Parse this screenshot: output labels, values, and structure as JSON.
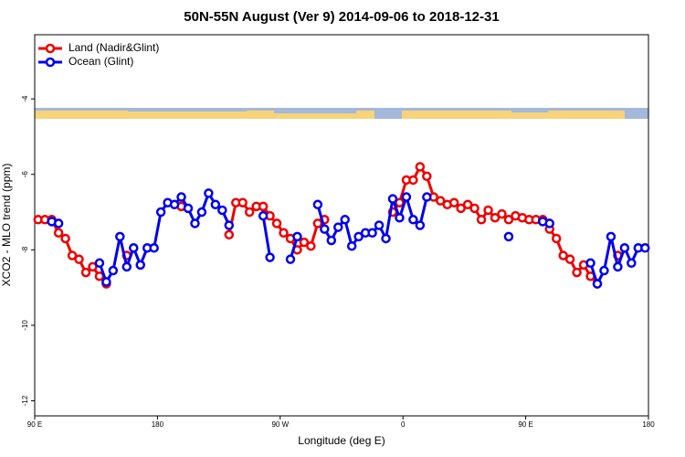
{
  "chart_data": {
    "type": "line",
    "title": "50N-55N August (Ver 9)   2014-09-06 to 2018-12-31",
    "x_label": "Longitude (deg E)",
    "y_label": "XCO2 - MLO trend (ppm)",
    "x": [
      92.5,
      97.5,
      102.5,
      107.5,
      112.5,
      117.5,
      122.5,
      127.5,
      132.5,
      137.5,
      142.5,
      147.5,
      152.5,
      157.5,
      162.5,
      167.5,
      172.5,
      177.5,
      182.5,
      187.5,
      192.5,
      197.5,
      202.5,
      207.5,
      212.5,
      217.5,
      222.5,
      227.5,
      232.5,
      237.5,
      242.5,
      247.5,
      252.5,
      257.5,
      262.5,
      267.5,
      272.5,
      277.5,
      282.5,
      287.5,
      292.5,
      297.5,
      302.5,
      307.5,
      312.5,
      317.5,
      322.5,
      327.5,
      332.5,
      337.5,
      342.5,
      347.5,
      352.5,
      357.5,
      362.5,
      367.5,
      372.5,
      377.5,
      382.5,
      387.5,
      392.5,
      397.5,
      402.5,
      407.5,
      412.5,
      417.5,
      422.5,
      427.5,
      432.5,
      437.5,
      442.5,
      447.5,
      452.5,
      457.5,
      462.5,
      467.5,
      472.5,
      477.5,
      482.5,
      487.5,
      492.5,
      497.5,
      502.5,
      507.5,
      512.5,
      517.5,
      522.5,
      527.5,
      532.5,
      537.5
    ],
    "series": [
      {
        "name": "Land (Nadir&Glint)",
        "color": "#ee0000",
        "values": [
          -7.2,
          -7.2,
          -7.2,
          -7.55,
          -7.7,
          -8.15,
          -8.25,
          -8.6,
          -8.45,
          -8.7,
          -8.9,
          null,
          null,
          -8.15,
          null,
          null,
          null,
          null,
          null,
          null,
          null,
          -6.85,
          null,
          null,
          null,
          null,
          null,
          null,
          -7.6,
          -6.75,
          -6.75,
          -7.0,
          -6.85,
          -6.85,
          -7.1,
          -7.3,
          -7.55,
          -7.7,
          -8.0,
          -7.8,
          -7.9,
          -7.3,
          -7.2,
          null,
          null,
          null,
          null,
          null,
          null,
          null,
          null,
          null,
          -7.0,
          -6.75,
          -6.15,
          -6.15,
          -5.8,
          -6.05,
          -6.6,
          -6.7,
          -6.8,
          -6.75,
          -6.9,
          -6.8,
          -6.9,
          -7.2,
          -6.95,
          -7.15,
          -7.05,
          -7.2,
          -7.1,
          -7.15,
          -7.2,
          -7.2,
          -7.2,
          -7.45,
          -7.7,
          -8.15,
          -8.25,
          -8.6,
          -8.4,
          -8.7,
          -8.9,
          null,
          null,
          -8.15,
          null,
          null,
          null,
          null
        ]
      },
      {
        "name": "Ocean (Glint)",
        "color": "#0000ee",
        "values": [
          null,
          null,
          -7.25,
          -7.3,
          null,
          null,
          null,
          null,
          null,
          -8.35,
          -8.85,
          -8.55,
          -7.65,
          -8.45,
          -7.95,
          -8.4,
          -7.95,
          -7.95,
          -7.0,
          -6.75,
          -6.8,
          -6.6,
          -6.9,
          -7.3,
          -7.0,
          -6.5,
          -6.8,
          -6.95,
          -7.35,
          null,
          null,
          null,
          null,
          -7.1,
          -8.2,
          null,
          null,
          -8.25,
          -7.65,
          null,
          null,
          -6.8,
          -7.45,
          -7.75,
          -7.4,
          -7.2,
          -7.9,
          -7.65,
          -7.55,
          -7.55,
          -7.35,
          -7.7,
          -6.65,
          -7.15,
          -6.6,
          -7.2,
          -7.35,
          -6.6,
          null,
          null,
          null,
          null,
          null,
          null,
          null,
          null,
          null,
          null,
          null,
          -7.65,
          null,
          null,
          null,
          null,
          -7.25,
          -7.3,
          null,
          null,
          null,
          null,
          null,
          -8.35,
          -8.9,
          -8.55,
          -7.65,
          -8.45,
          -7.95,
          -8.35,
          -7.95,
          -7.95
        ]
      }
    ],
    "xlim": [
      90,
      540
    ],
    "xticks": [
      {
        "value": 90,
        "label": "90 E"
      },
      180,
      {
        "value": 270,
        "label": "90 W"
      },
      {
        "value": 360,
        "label": "0"
      },
      {
        "value": 450,
        "label": "90 E"
      },
      {
        "value": 540,
        "label": "180"
      }
    ],
    "ylim": [
      -12.4,
      -2.3
    ],
    "yticks": [
      -4,
      -6,
      -8,
      -10,
      -12
    ],
    "legend": "upper left"
  }
}
